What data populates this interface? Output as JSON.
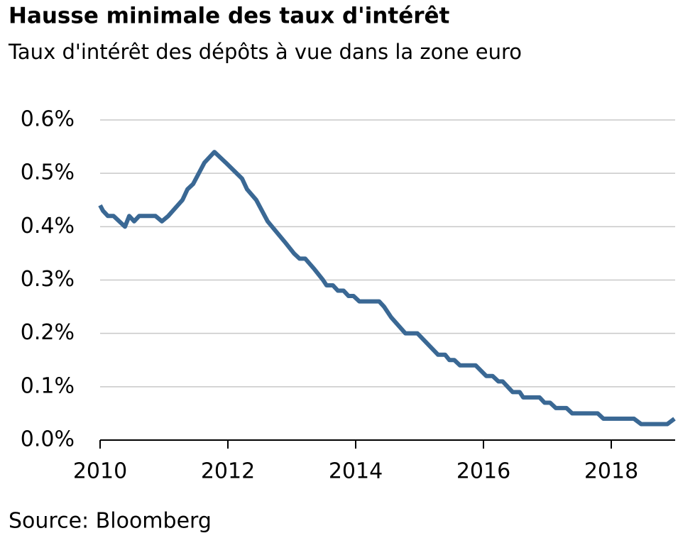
{
  "chart_data": {
    "type": "line",
    "title": "Hausse minimale des taux d'intérêt",
    "subtitle": "Taux d'intérêt des dépôts à vue dans la zone euro",
    "source": "Source: Bloomberg",
    "x": [
      2010.0,
      2010.044,
      2010.122,
      2010.211,
      2010.3,
      2010.389,
      2010.456,
      2010.533,
      2010.611,
      2010.867,
      2010.967,
      2011.067,
      2011.289,
      2011.367,
      2011.456,
      2011.633,
      2011.789,
      2011.967,
      2012.222,
      2012.3,
      2012.444,
      2012.622,
      2012.9,
      2013.033,
      2013.122,
      2013.211,
      2013.356,
      2013.489,
      2013.544,
      2013.644,
      2013.722,
      2013.811,
      2013.889,
      2013.967,
      2014.056,
      2014.367,
      2014.444,
      2014.556,
      2014.778,
      2014.967,
      2015.289,
      2015.4,
      2015.467,
      2015.544,
      2015.633,
      2015.878,
      2016.044,
      2016.144,
      2016.233,
      2016.3,
      2016.456,
      2016.567,
      2016.622,
      2016.878,
      2016.956,
      2017.044,
      2017.133,
      2017.3,
      2017.389,
      2017.789,
      2017.878,
      2018.356,
      2018.467,
      2018.878,
      2018.989
    ],
    "series": [
      {
        "name": "Taux",
        "color": "#3a6894",
        "values": [
          0.44,
          0.43,
          0.42,
          0.42,
          0.41,
          0.4,
          0.42,
          0.41,
          0.42,
          0.42,
          0.41,
          0.42,
          0.45,
          0.47,
          0.48,
          0.52,
          0.54,
          0.52,
          0.49,
          0.47,
          0.45,
          0.41,
          0.37,
          0.35,
          0.34,
          0.34,
          0.32,
          0.3,
          0.29,
          0.29,
          0.28,
          0.28,
          0.27,
          0.27,
          0.26,
          0.26,
          0.25,
          0.23,
          0.2,
          0.2,
          0.16,
          0.16,
          0.15,
          0.15,
          0.14,
          0.14,
          0.12,
          0.12,
          0.11,
          0.11,
          0.09,
          0.09,
          0.08,
          0.08,
          0.07,
          0.07,
          0.06,
          0.06,
          0.05,
          0.05,
          0.04,
          0.04,
          0.03,
          0.03,
          0.04
        ]
      }
    ],
    "xlim": [
      2010,
      2019
    ],
    "xticks": [
      2010,
      2012,
      2014,
      2016,
      2018
    ],
    "ylim": [
      0,
      0.6
    ],
    "yticks": [
      {
        "value": 0,
        "label": "0.0%"
      },
      {
        "value": 0.1,
        "label": "0.1%"
      },
      {
        "value": 0.2,
        "label": "0.2%"
      },
      {
        "value": 0.3,
        "label": "0.3%"
      },
      {
        "value": 0.4,
        "label": "0.4%"
      },
      {
        "value": 0.5,
        "label": "0.5%"
      },
      {
        "value": 0.6,
        "label": "0.6%"
      }
    ],
    "grid": true
  }
}
